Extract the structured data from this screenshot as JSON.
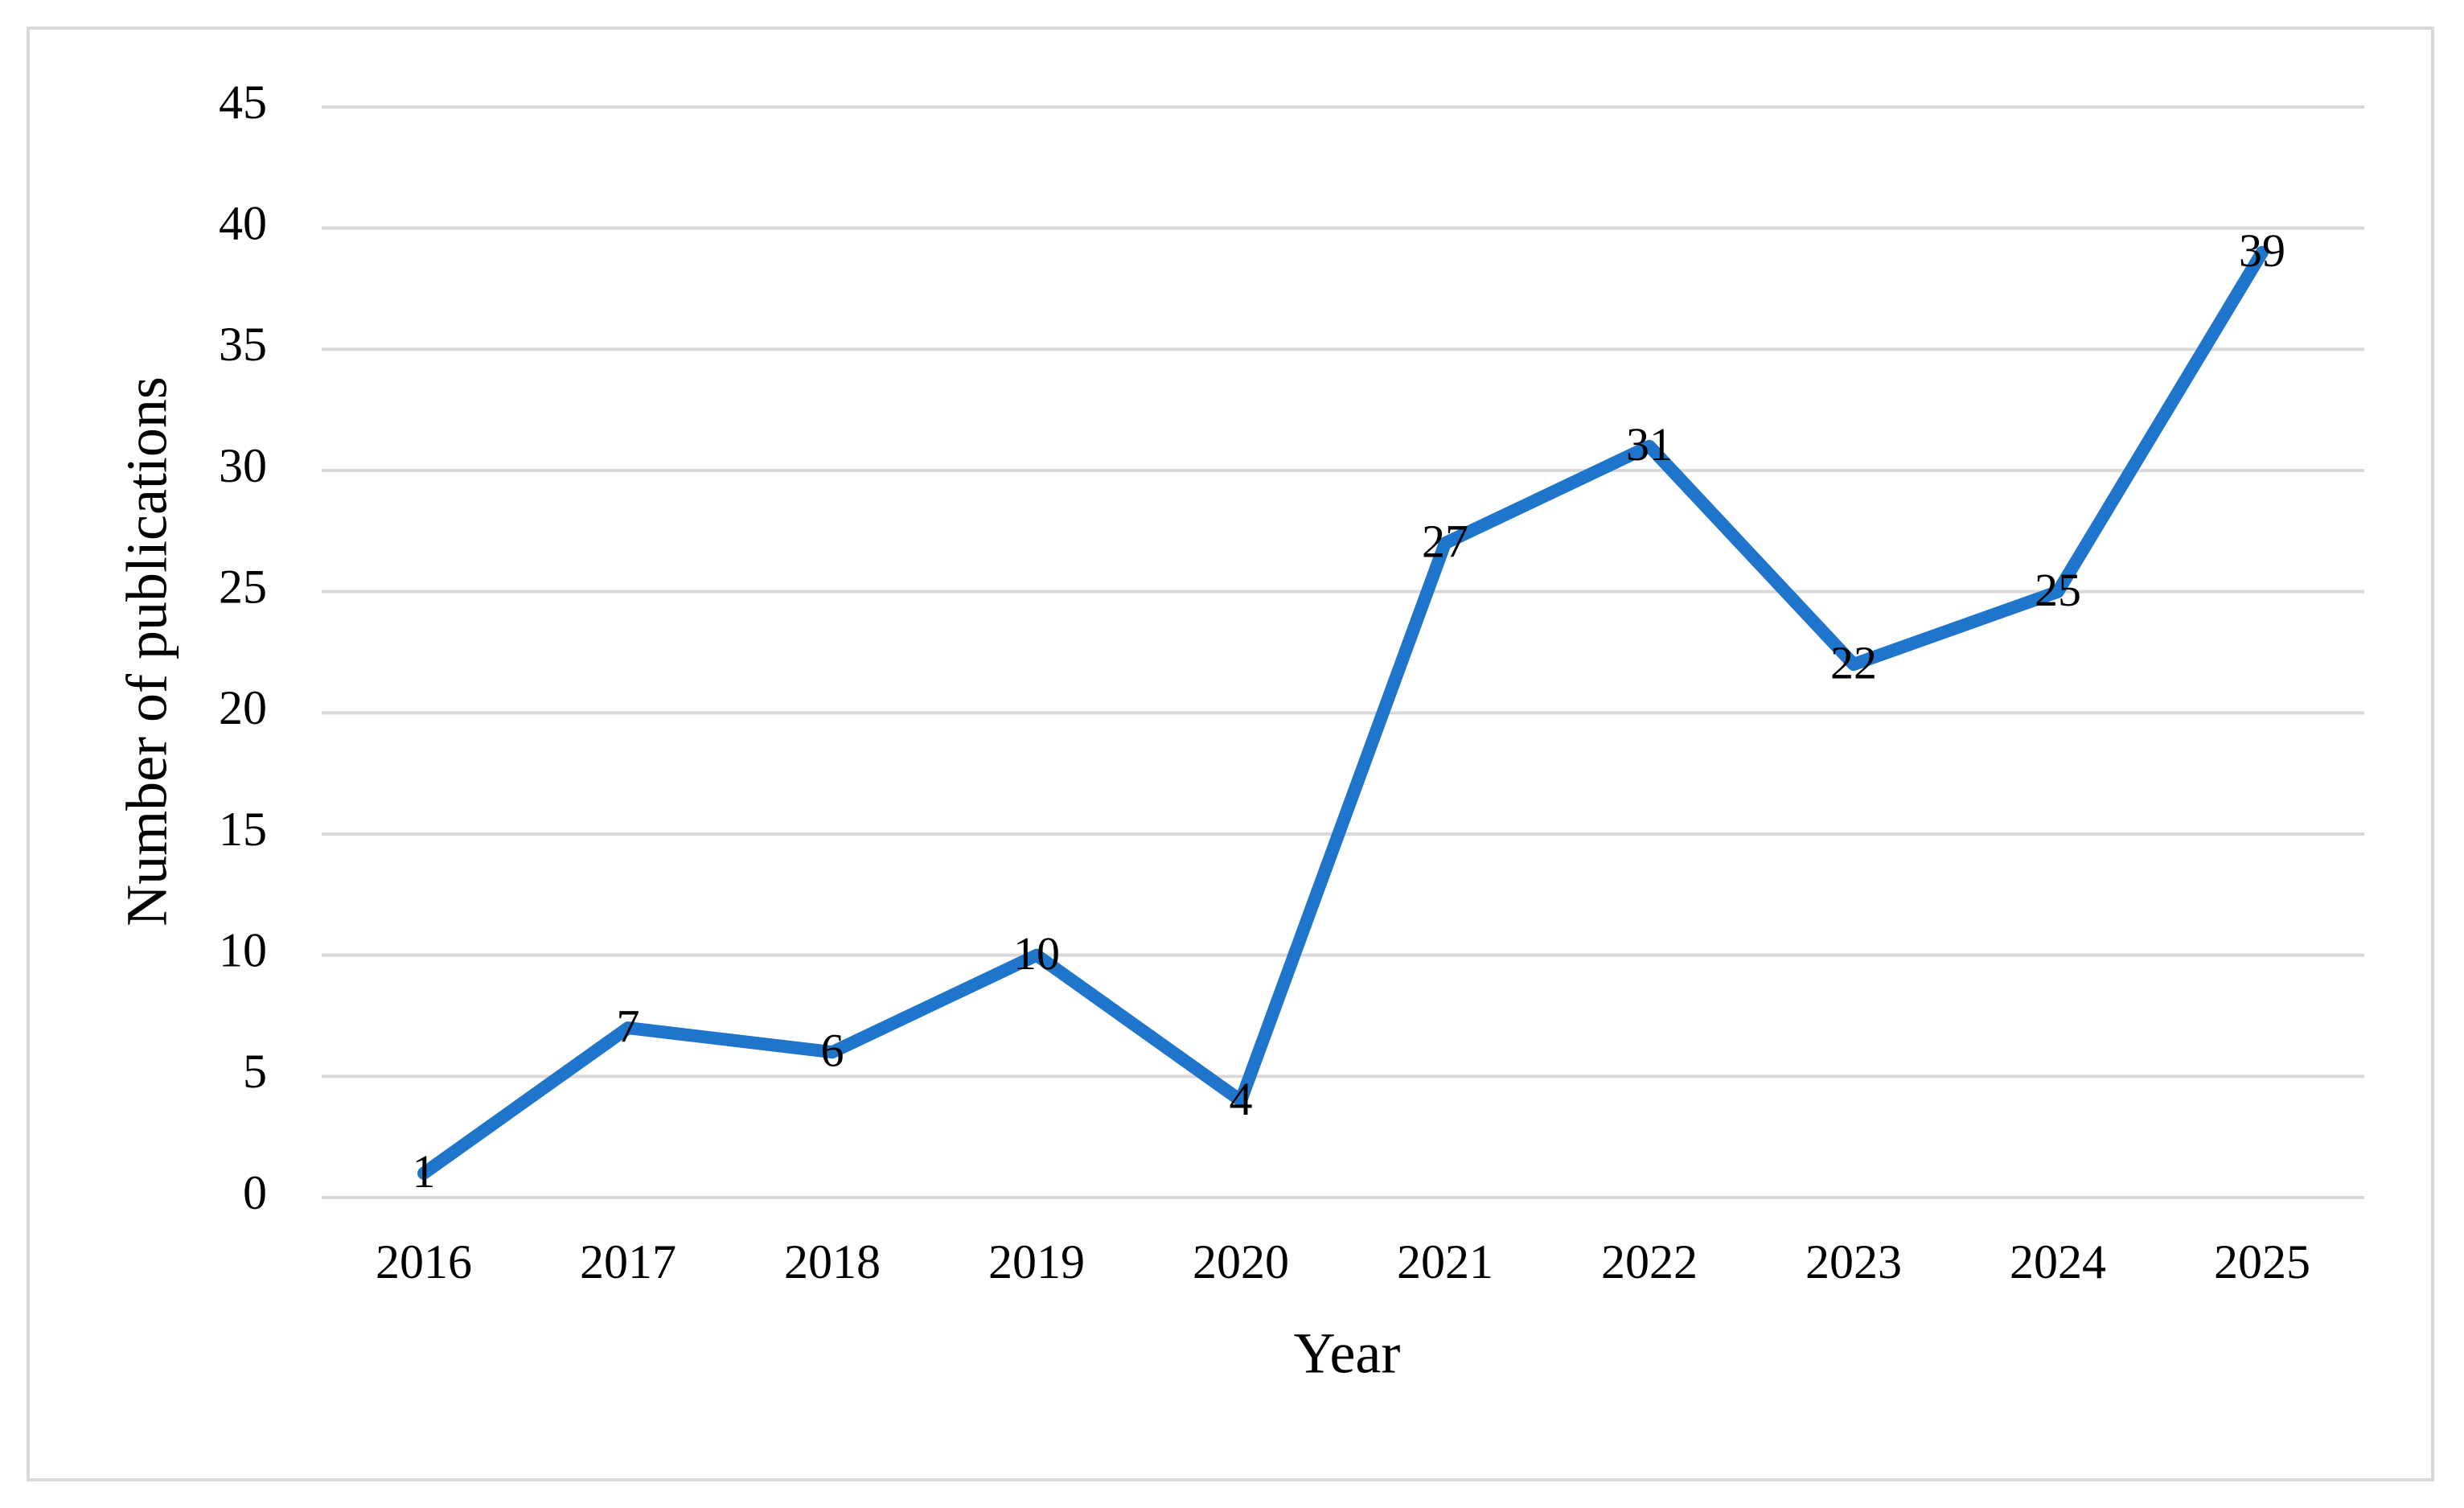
{
  "chart_data": {
    "type": "line",
    "x_label": "Year",
    "y_label": "Number of publications",
    "categories": [
      "2016",
      "2017",
      "2018",
      "2019",
      "2020",
      "2021",
      "2022",
      "2023",
      "2024",
      "2025"
    ],
    "series": [
      {
        "name": "Number of publications",
        "color": "#1f74cc",
        "values": [
          1,
          7,
          6,
          10,
          4,
          27,
          31,
          22,
          25,
          39
        ]
      }
    ],
    "ylim": [
      0,
      45
    ],
    "yticks": [
      0,
      5,
      10,
      15,
      20,
      25,
      30,
      35,
      40,
      45
    ],
    "grid": true,
    "data_labels": true
  }
}
